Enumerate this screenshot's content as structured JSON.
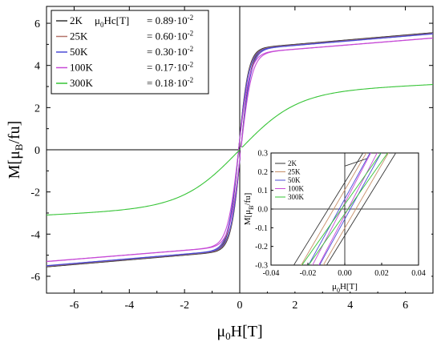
{
  "chart_data": {
    "type": "line",
    "main": {
      "xlabel": "μ0H[T]",
      "ylabel": "M[μB/fu]",
      "xlim": [
        -7,
        7
      ],
      "ylim": [
        -6.8,
        6.8
      ],
      "xticks": [
        -6,
        -4,
        -2,
        0,
        2,
        4,
        6
      ],
      "yticks": [
        -6,
        -4,
        -2,
        0,
        2,
        4,
        6
      ],
      "legend_header": "μ0Hc[T]",
      "series": [
        {
          "name": "2K",
          "hc": "= 0.89·10",
          "exp": "-2",
          "color": "#333333",
          "ms": 5.55,
          "h0": 0.35
        },
        {
          "name": "25K",
          "hc": "= 0.60·10",
          "exp": "-2",
          "color": "#b5746a",
          "ms": 5.52,
          "h0": 0.36
        },
        {
          "name": "50K",
          "hc": "= 0.30·10",
          "exp": "-2",
          "color": "#4b4bd6",
          "ms": 5.5,
          "h0": 0.37
        },
        {
          "name": "100K",
          "hc": "= 0.17·10",
          "exp": "-2",
          "color": "#c64ad6",
          "ms": 5.3,
          "h0": 0.4
        },
        {
          "name": "300K",
          "hc": "= 0.18·10",
          "exp": "-2",
          "color": "#36c436",
          "ms": 3.1,
          "h0": 2.0
        }
      ]
    },
    "inset": {
      "xlabel": "μ0H[T]",
      "ylabel": "M[μB/fu]",
      "xlim": [
        -0.04,
        0.04
      ],
      "ylim": [
        -0.3,
        0.3
      ],
      "xticks": [
        "-0.04",
        "-0.02",
        "0.00",
        "0.02",
        "0.04"
      ],
      "yticks": [
        "-0.3",
        "-0.2",
        "-0.1",
        "0.0",
        "0.1",
        "0.2",
        "0.3"
      ],
      "series": [
        {
          "name": "2K",
          "color": "#333333",
          "hc": 0.0089,
          "slope": 16
        },
        {
          "name": "25K",
          "color": "#c8906a",
          "hc": 0.006,
          "slope": 17
        },
        {
          "name": "50K",
          "color": "#4b4bd6",
          "hc": 0.003,
          "slope": 18
        },
        {
          "name": "100K",
          "color": "#c64ad6",
          "hc": 0.0017,
          "slope": 19
        },
        {
          "name": "300K",
          "color": "#36c436",
          "hc": 0.0018,
          "slope": 14
        }
      ]
    }
  }
}
